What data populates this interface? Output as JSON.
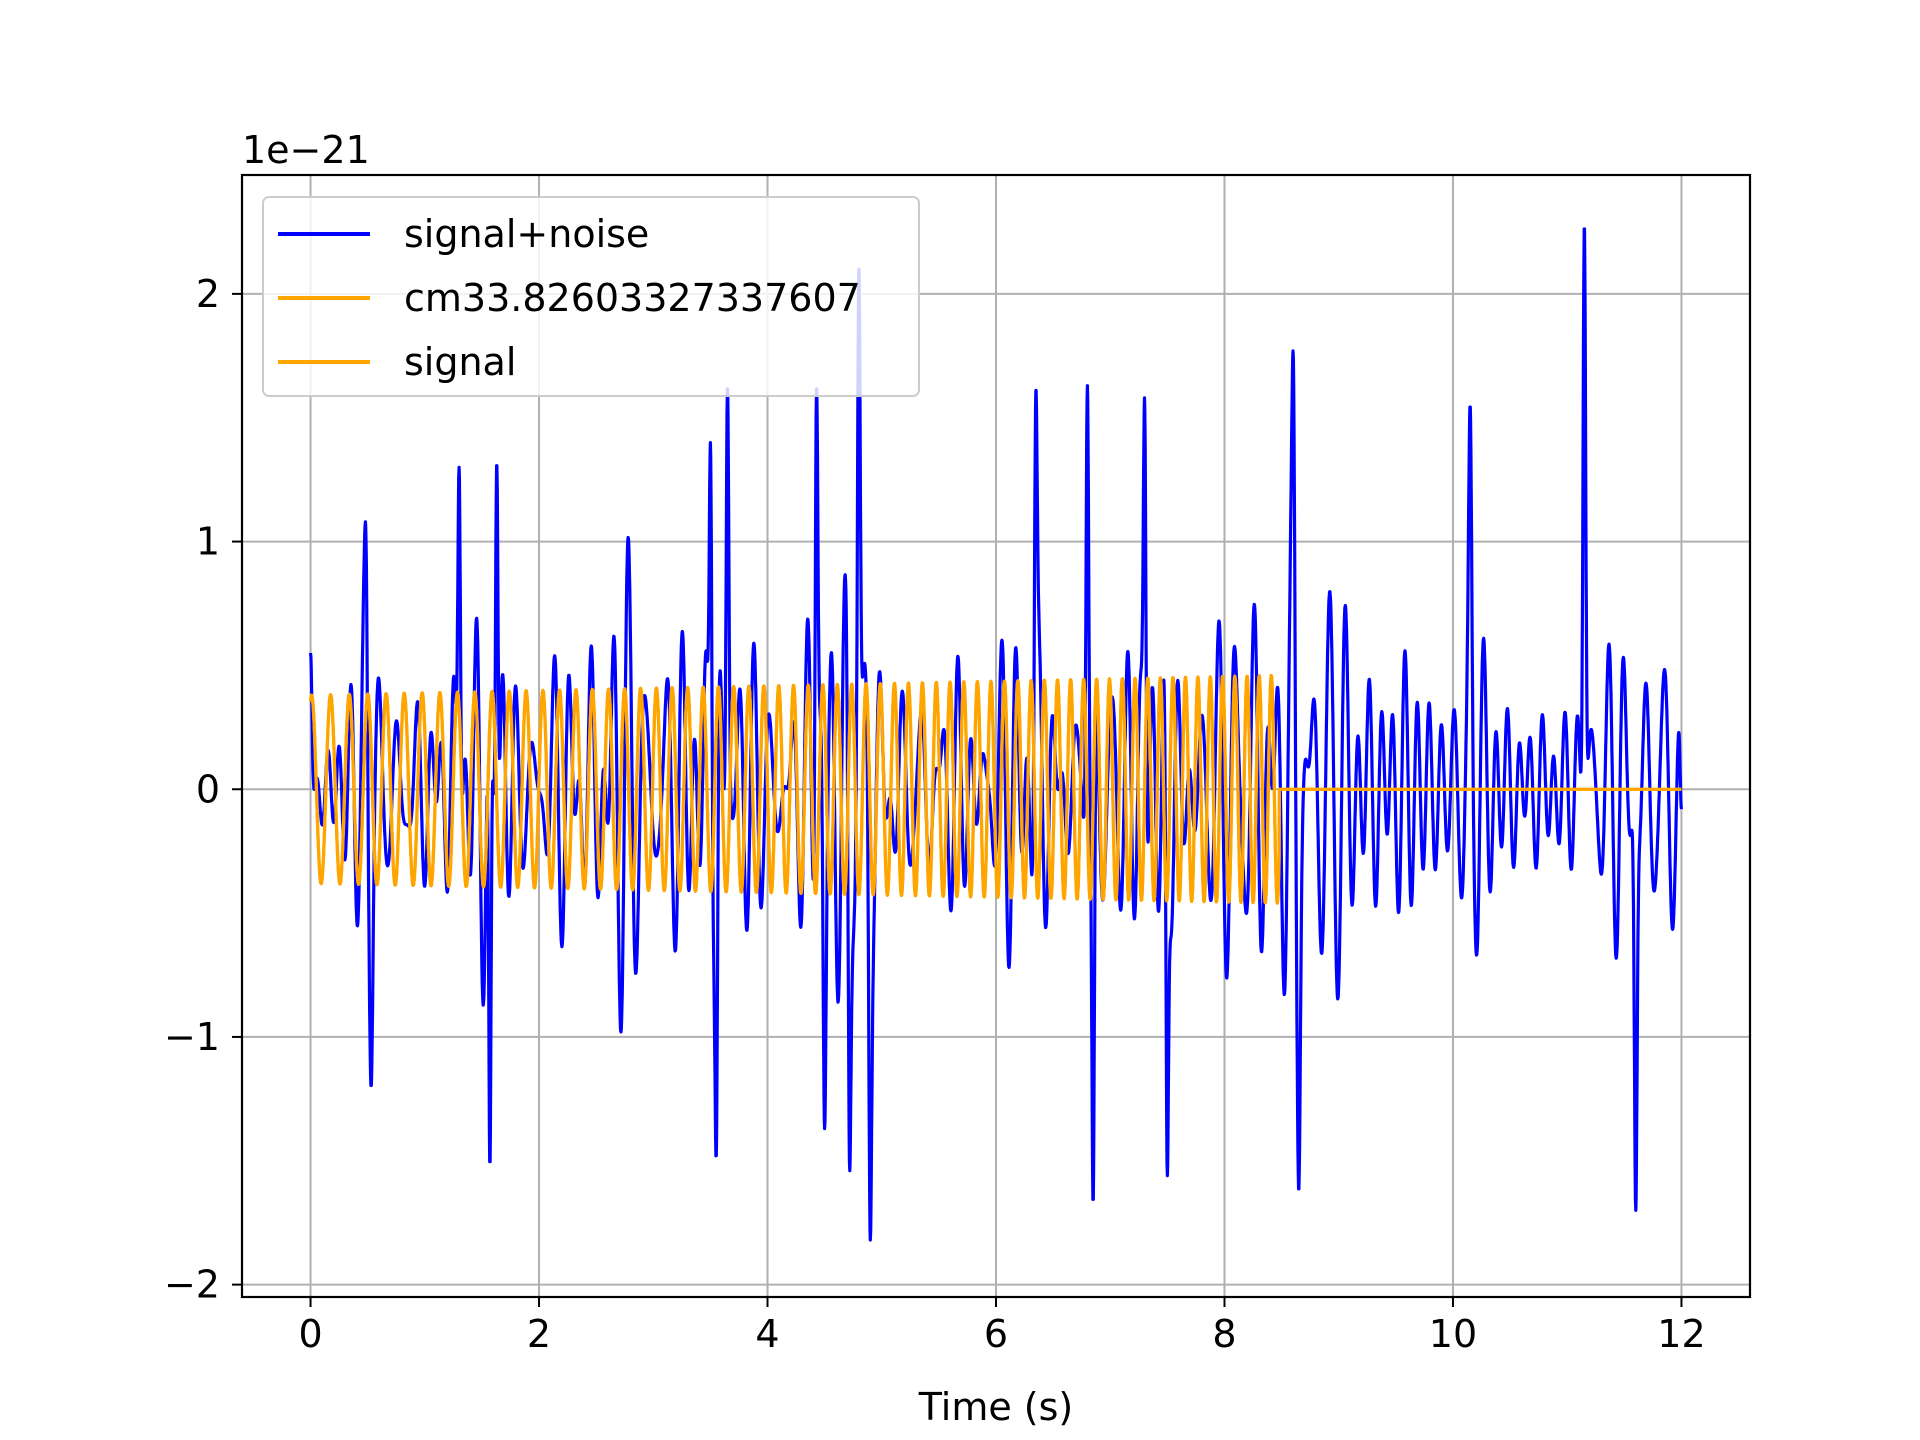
{
  "chart_data": {
    "type": "line",
    "title": "",
    "xlabel": "Time (s)",
    "ylabel": "",
    "y_offset_label": "1e−21",
    "xlim": [
      -0.6,
      12.6
    ],
    "ylim": [
      -2.05,
      2.48
    ],
    "x_ticks": [
      0,
      2,
      4,
      6,
      8,
      10,
      12
    ],
    "x_tick_labels": [
      "0",
      "2",
      "4",
      "6",
      "8",
      "10",
      "12"
    ],
    "y_ticks": [
      -2,
      -1,
      0,
      1,
      2
    ],
    "y_tick_labels": [
      "−2",
      "−1",
      "0",
      "1",
      "2"
    ],
    "grid": true,
    "legend_position": "top-left",
    "series": [
      {
        "name": "signal+noise",
        "color": "#0000ff",
        "x_range": [
          0,
          12
        ],
        "approx_amplitude": 0.55,
        "envelope_points": [
          {
            "x": 0.0,
            "y": 0.55
          },
          {
            "x": 0.48,
            "y": 1.08
          },
          {
            "x": 0.53,
            "y": -1.2
          },
          {
            "x": 1.3,
            "y": 1.3
          },
          {
            "x": 1.57,
            "y": -1.52
          },
          {
            "x": 1.63,
            "y": 1.32
          },
          {
            "x": 3.5,
            "y": 1.4
          },
          {
            "x": 3.55,
            "y": -1.49
          },
          {
            "x": 3.65,
            "y": 1.63
          },
          {
            "x": 4.43,
            "y": 1.63
          },
          {
            "x": 4.5,
            "y": -1.37
          },
          {
            "x": 4.72,
            "y": -1.54
          },
          {
            "x": 4.8,
            "y": 2.1
          },
          {
            "x": 4.9,
            "y": -1.82
          },
          {
            "x": 6.35,
            "y": 1.62
          },
          {
            "x": 6.8,
            "y": 1.63
          },
          {
            "x": 6.85,
            "y": -1.67
          },
          {
            "x": 7.3,
            "y": 1.58
          },
          {
            "x": 7.5,
            "y": -1.56
          },
          {
            "x": 8.6,
            "y": 1.77
          },
          {
            "x": 8.65,
            "y": -1.62
          },
          {
            "x": 10.15,
            "y": 1.55
          },
          {
            "x": 11.15,
            "y": 2.28
          },
          {
            "x": 11.6,
            "y": -1.7
          },
          {
            "x": 12.0,
            "y": -0.08
          }
        ]
      },
      {
        "name": "cm33.82603327337607",
        "color": "#ffa500",
        "x_range": [
          0,
          12
        ],
        "signal_end": 8.48,
        "amplitude_start": 0.38,
        "amplitude_end": 0.46,
        "frequency_start_hz": 6.0,
        "frequency_end_hz": 9.5,
        "after_end_value": 0
      },
      {
        "name": "signal",
        "color": "#ffa500",
        "x_range": [
          0,
          12
        ],
        "signal_end": 8.48,
        "amplitude_start": 0.38,
        "amplitude_end": 0.46,
        "frequency_start_hz": 6.0,
        "frequency_end_hz": 9.5,
        "after_end_value": 0
      }
    ]
  }
}
